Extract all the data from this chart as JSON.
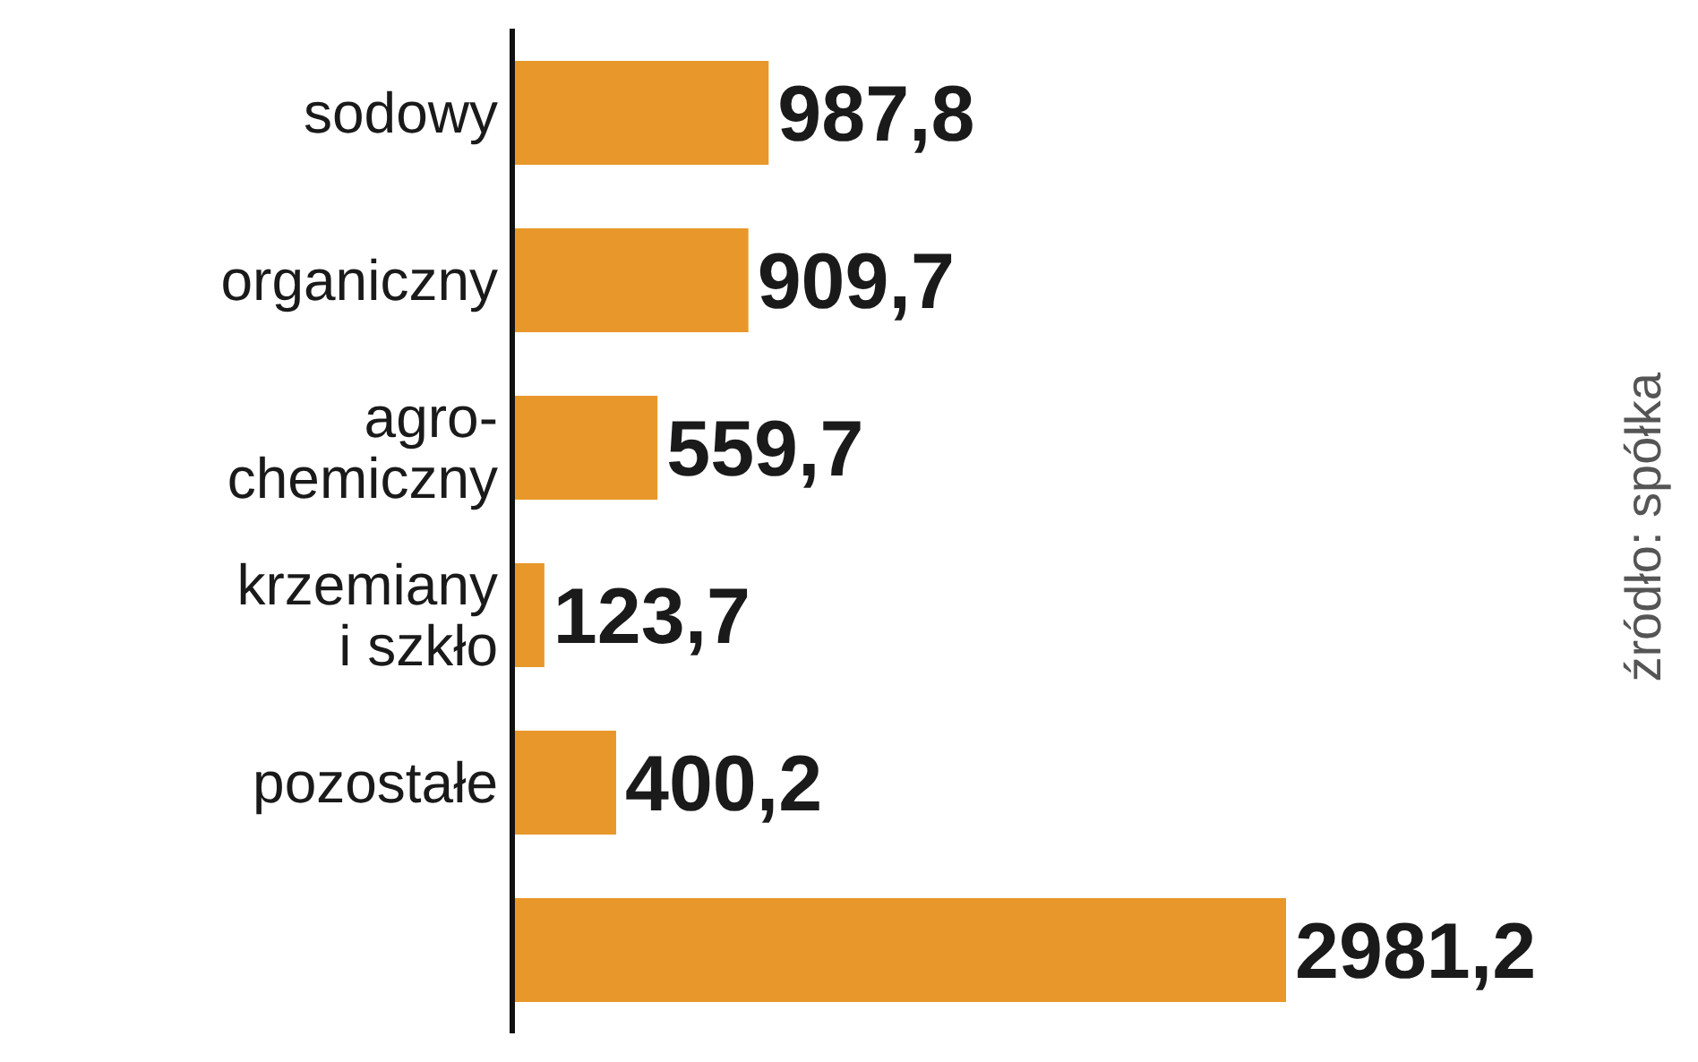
{
  "chart_data": {
    "type": "bar",
    "orientation": "horizontal",
    "categories": [
      "sodowy",
      "organiczny",
      "agro-\nchemiczny",
      "krzemiany\ni szkło",
      "pozostałe",
      null
    ],
    "values": [
      987.8,
      909.7,
      559.7,
      123.7,
      400.2,
      2981.2
    ],
    "value_labels": [
      "987,8",
      "909,7",
      "559,7",
      "123,7",
      "400,2",
      "2981,2"
    ],
    "color": "#e8982a",
    "tick_labels": "y",
    "annotations": [
      "źródło: spółka"
    ]
  }
}
